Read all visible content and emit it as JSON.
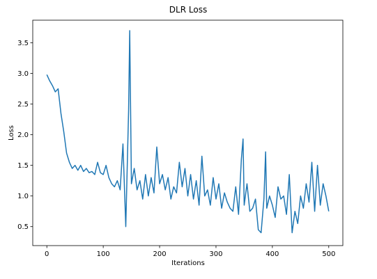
{
  "chart_data": {
    "type": "line",
    "title": "DLR Loss",
    "x_label": "Iterations",
    "y_label": "Loss",
    "x": [
      0,
      5,
      10,
      15,
      20,
      25,
      30,
      35,
      40,
      45,
      50,
      55,
      60,
      65,
      70,
      75,
      80,
      85,
      90,
      95,
      100,
      105,
      110,
      115,
      120,
      125,
      130,
      135,
      140,
      145,
      147,
      150,
      155,
      160,
      165,
      170,
      175,
      180,
      185,
      190,
      195,
      200,
      205,
      210,
      215,
      220,
      225,
      230,
      235,
      240,
      245,
      250,
      255,
      260,
      265,
      270,
      275,
      280,
      285,
      290,
      295,
      300,
      305,
      310,
      315,
      320,
      325,
      330,
      335,
      340,
      345,
      348,
      350,
      355,
      360,
      365,
      370,
      375,
      380,
      385,
      388,
      390,
      395,
      400,
      405,
      410,
      415,
      420,
      425,
      430,
      435,
      440,
      445,
      450,
      455,
      460,
      465,
      470,
      475,
      480,
      485,
      490,
      495,
      500
    ],
    "series": [
      {
        "name": "Loss",
        "color": "#1f77b4",
        "values": [
          2.98,
          2.88,
          2.8,
          2.7,
          2.75,
          2.35,
          2.05,
          1.7,
          1.55,
          1.45,
          1.5,
          1.42,
          1.5,
          1.4,
          1.45,
          1.38,
          1.4,
          1.35,
          1.55,
          1.38,
          1.35,
          1.5,
          1.3,
          1.2,
          1.15,
          1.25,
          1.1,
          1.85,
          0.5,
          2.4,
          3.7,
          1.2,
          1.45,
          1.1,
          1.25,
          0.95,
          1.35,
          1.0,
          1.3,
          1.05,
          1.8,
          1.2,
          1.35,
          1.1,
          1.3,
          0.95,
          1.15,
          1.05,
          1.55,
          1.15,
          1.45,
          1.0,
          1.35,
          0.95,
          1.25,
          0.85,
          1.65,
          1.0,
          1.1,
          0.85,
          1.3,
          0.95,
          1.2,
          0.8,
          1.05,
          0.9,
          0.8,
          0.75,
          1.15,
          0.7,
          1.6,
          1.93,
          0.85,
          1.2,
          0.75,
          0.8,
          0.95,
          0.45,
          0.4,
          0.95,
          1.72,
          0.8,
          1.0,
          0.85,
          0.65,
          1.15,
          0.95,
          1.0,
          0.7,
          1.35,
          0.4,
          0.75,
          0.55,
          1.0,
          0.8,
          1.2,
          0.9,
          1.55,
          0.75,
          1.5,
          0.85,
          1.2,
          1.0,
          0.75
        ]
      }
    ],
    "xlim": [
      -25,
      525
    ],
    "ylim": [
      0.19,
      3.87
    ],
    "xticks": [
      0,
      100,
      200,
      300,
      400,
      500
    ],
    "yticks": [
      0.5,
      {
        "value": 1.0,
        "label": "1.0"
      },
      1.5,
      {
        "value": 2.0,
        "label": "2.0"
      },
      2.5,
      {
        "value": 3.0,
        "label": "3.0"
      },
      3.5
    ],
    "grid": false
  }
}
